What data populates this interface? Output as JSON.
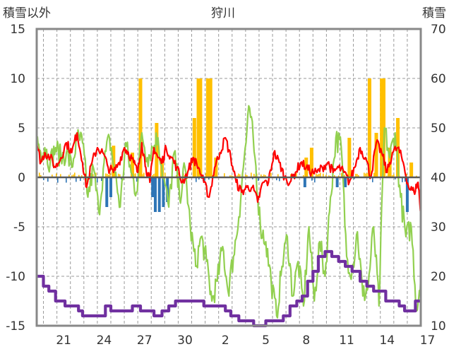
{
  "chart_data": {
    "type": "line",
    "title": "狩川",
    "left_axis_label": "積雪以外",
    "right_axis_label": "積雪",
    "y_left": {
      "min": -15,
      "max": 15,
      "ticks": [
        15,
        10,
        5,
        0,
        -5,
        -10,
        -15
      ]
    },
    "y_right": {
      "min": 10,
      "max": 70,
      "ticks": [
        70,
        60,
        50,
        40,
        30,
        20,
        10
      ]
    },
    "x_ticks": [
      "21",
      "24",
      "27",
      "30",
      "2",
      "5",
      "8",
      "11",
      "14",
      "17"
    ],
    "grid": true,
    "colors": {
      "snowfall_positive": "#ffc000",
      "snowfall_negative": "#2e75b6",
      "red_series": "#ff0000",
      "green_series": "#92d050",
      "snow_depth": "#7030a0",
      "frame": "#888888",
      "gridline": "#999999",
      "zero_line": "#595959"
    },
    "bars_major": [
      {
        "day": 25.2,
        "value": 3.2
      },
      {
        "day": 26.6,
        "value": 2.5
      },
      {
        "day": 27.2,
        "value": 10.0
      },
      {
        "day": 28.4,
        "value": 5.5
      },
      {
        "day": 28.8,
        "value": 1.5
      },
      {
        "day": 31.2,
        "value": 6.0
      },
      {
        "day": 31.5,
        "value": 10.0
      },
      {
        "day": 31.65,
        "value": 10.0
      },
      {
        "day": 32.2,
        "value": 10.0
      },
      {
        "day": 32.4,
        "value": 10.0
      },
      {
        "day": 32.8,
        "value": 2.0
      },
      {
        "day": 39.5,
        "value": 2.0
      },
      {
        "day": 39.9,
        "value": 3.0
      },
      {
        "day": 42.7,
        "value": 4.0
      },
      {
        "day": 44.2,
        "value": 10.0
      },
      {
        "day": 44.7,
        "value": 4.5
      },
      {
        "day": 45.1,
        "value": 10.0
      },
      {
        "day": 45.25,
        "value": 10.0
      },
      {
        "day": 45.7,
        "value": 3.0
      },
      {
        "day": 46.3,
        "value": 6.0
      },
      {
        "day": 47.3,
        "value": 1.5
      }
    ],
    "series": [
      {
        "name": "積雪",
        "axis": "right",
        "x": [
          19.5,
          20.0,
          20.4,
          20.9,
          21.2,
          21.6,
          22.1,
          22.6,
          22.9,
          23.3,
          23.8,
          24.3,
          24.6,
          25.0,
          25.5,
          26.0,
          26.6,
          27.2,
          27.7,
          28.2,
          28.8,
          29.3,
          29.8,
          30.3,
          30.8,
          31.4,
          31.9,
          32.4,
          33.0,
          33.5,
          33.9,
          34.5,
          35.0,
          35.6,
          36.0,
          36.5,
          36.9,
          37.4,
          37.8,
          38.3,
          38.8,
          39.2,
          39.6,
          40.0,
          40.4,
          40.9,
          41.4,
          41.9,
          42.4,
          42.9,
          43.5,
          44.0,
          44.5,
          44.9,
          45.4,
          45.9,
          46.4,
          46.8,
          47.3,
          47.6,
          48.0
        ],
        "values": [
          20,
          18,
          17,
          15,
          15,
          14,
          14,
          13,
          12,
          12,
          12,
          12,
          14,
          13,
          13,
          13,
          14,
          13,
          13,
          12,
          13,
          14,
          15,
          15,
          15,
          15,
          14,
          14,
          14,
          13,
          12,
          11,
          11,
          10,
          10,
          11,
          11,
          11,
          12,
          14,
          15,
          16,
          19,
          21,
          24,
          25,
          24,
          23,
          22,
          21,
          19,
          18,
          17,
          17,
          15,
          15,
          14,
          13,
          13,
          15,
          15
        ]
      },
      {
        "name": "赤",
        "axis": "left",
        "x": [
          19.5,
          19.8,
          20.1,
          20.5,
          20.9,
          21.3,
          21.7,
          22.1,
          22.5,
          22.9,
          23.2,
          23.6,
          24.0,
          24.4,
          24.8,
          25.2,
          25.6,
          26.0,
          26.3,
          26.7,
          27.0,
          27.3,
          27.6,
          27.9,
          28.2,
          28.5,
          28.8,
          29.1,
          29.5,
          29.9,
          30.3,
          30.7,
          31.1,
          31.5,
          31.9,
          32.3,
          32.7,
          33.1,
          33.5,
          33.9,
          34.3,
          34.7,
          35.1,
          35.5,
          35.9,
          36.3,
          36.7,
          37.1,
          37.5,
          37.9,
          38.3,
          38.7,
          39.1,
          39.5,
          39.9,
          40.3,
          40.7,
          41.1,
          41.5,
          41.9,
          42.3,
          42.7,
          43.1,
          43.5,
          43.9,
          44.3,
          44.7,
          45.1,
          45.5,
          45.9,
          46.3,
          46.7,
          47.1,
          47.5,
          47.8,
          48.0
        ],
        "values": [
          3.5,
          1.5,
          2.5,
          2.0,
          1.0,
          2.0,
          3.5,
          2.5,
          4.5,
          1.5,
          -1.0,
          1.5,
          3.0,
          2.5,
          1.0,
          0.5,
          1.5,
          3.0,
          2.5,
          1.5,
          0.5,
          3.5,
          1.0,
          -0.5,
          3.0,
          2.0,
          1.5,
          3.0,
          2.0,
          1.0,
          -0.5,
          0.5,
          2.0,
          1.0,
          -0.5,
          -2.0,
          1.0,
          2.5,
          4.0,
          2.0,
          -0.5,
          -1.5,
          -1.0,
          -1.0,
          -2.5,
          -0.5,
          -0.5,
          2.5,
          1.5,
          0.0,
          -0.5,
          0.5,
          1.5,
          1.0,
          0.5,
          0.5,
          1.0,
          1.5,
          0.5,
          1.0,
          0.5,
          -0.5,
          1.0,
          3.0,
          2.0,
          0.0,
          3.5,
          2.5,
          0.5,
          2.5,
          3.0,
          1.5,
          -1.0,
          -1.5,
          -0.5,
          -3.5
        ]
      },
      {
        "name": "緑",
        "axis": "left",
        "x": [
          19.5,
          19.8,
          20.1,
          20.5,
          20.9,
          21.3,
          21.7,
          22.1,
          22.5,
          22.9,
          23.3,
          23.7,
          24.1,
          24.5,
          24.9,
          25.3,
          25.7,
          26.1,
          26.5,
          26.9,
          27.3,
          27.7,
          28.1,
          28.5,
          28.9,
          29.3,
          29.7,
          30.1,
          30.5,
          30.9,
          31.3,
          31.7,
          32.1,
          32.5,
          32.9,
          33.3,
          33.7,
          34.1,
          34.5,
          34.9,
          35.3,
          35.7,
          36.1,
          36.5,
          36.9,
          37.3,
          37.7,
          38.1,
          38.5,
          38.9,
          39.3,
          39.7,
          40.1,
          40.5,
          40.9,
          41.3,
          41.7,
          42.1,
          42.5,
          42.9,
          43.3,
          43.7,
          44.1,
          44.5,
          44.9,
          45.3,
          45.7,
          46.1,
          46.5,
          46.9,
          47.3,
          47.7,
          48.0
        ],
        "values": [
          4.0,
          2.5,
          3.0,
          1.5,
          3.0,
          2.0,
          2.5,
          1.0,
          4.0,
          3.5,
          -2.0,
          1.0,
          -3.5,
          1.5,
          4.0,
          0.5,
          -3.0,
          3.5,
          0.5,
          -1.5,
          4.5,
          2.0,
          3.0,
          4.0,
          0.0,
          -3.0,
          2.5,
          -2.0,
          1.0,
          -5.0,
          -9.0,
          -6.0,
          -8.5,
          -12.5,
          -10.5,
          -7.0,
          -11.5,
          -8.0,
          -4.0,
          2.0,
          7.0,
          2.0,
          -5.0,
          -6.5,
          -10.5,
          -14.0,
          -9.0,
          -6.0,
          -12.0,
          -8.5,
          -13.0,
          -5.0,
          -12.5,
          -6.5,
          -10.0,
          -2.0,
          4.0,
          3.0,
          -8.0,
          -9.5,
          -5.5,
          -12.0,
          -11.0,
          -5.0,
          -13.0,
          5.0,
          2.0,
          4.5,
          -2.0,
          -6.0,
          -5.0,
          -13.5,
          -10.0
        ]
      }
    ]
  }
}
